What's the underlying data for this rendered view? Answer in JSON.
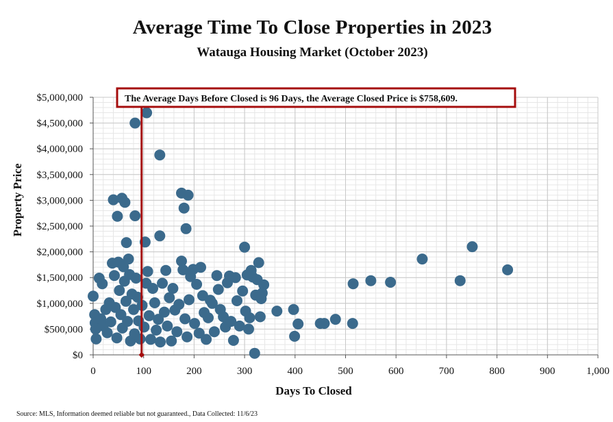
{
  "chart_data": {
    "type": "scatter",
    "title": "Average Time To Close Properties in 2023",
    "subtitle": "Watauga Housing Market (October 2023)",
    "xlabel": "Days To Closed",
    "ylabel": "Property Price",
    "xlim": [
      0,
      1000
    ],
    "ylim": [
      0,
      5000000
    ],
    "xticks": [
      "0",
      "100",
      "200",
      "300",
      "400",
      "500",
      "600",
      "700",
      "800",
      "900",
      "1,000"
    ],
    "yticks": [
      "$0",
      "$500,000",
      "$1,000,000",
      "$1,500,000",
      "$2,000,000",
      "$2,500,000",
      "$3,000,000",
      "$3,500,000",
      "$4,000,000",
      "$4,500,000",
      "$5,000,000"
    ],
    "grid": true,
    "reference_line": {
      "x": 96,
      "color": "#a50d0d"
    },
    "annotation": "The Average Days Before Closed is 96 Days, the Average Closed Price is $758,609.",
    "marker_color": "#3b6a8c",
    "points": [
      [
        83,
        4500000
      ],
      [
        106,
        4700000
      ],
      [
        132,
        3880000
      ],
      [
        175,
        3140000
      ],
      [
        188,
        3100000
      ],
      [
        180,
        2850000
      ],
      [
        184,
        2450000
      ],
      [
        132,
        2310000
      ],
      [
        40,
        3010000
      ],
      [
        57,
        3040000
      ],
      [
        63,
        2960000
      ],
      [
        48,
        2690000
      ],
      [
        83,
        2700000
      ],
      [
        66,
        2180000
      ],
      [
        103,
        2190000
      ],
      [
        0,
        1140000
      ],
      [
        3,
        780000
      ],
      [
        4,
        620000
      ],
      [
        5,
        500000
      ],
      [
        6,
        310000
      ],
      [
        12,
        1490000
      ],
      [
        18,
        1380000
      ],
      [
        15,
        700000
      ],
      [
        20,
        560000
      ],
      [
        25,
        880000
      ],
      [
        28,
        430000
      ],
      [
        32,
        1010000
      ],
      [
        35,
        640000
      ],
      [
        38,
        1780000
      ],
      [
        42,
        1540000
      ],
      [
        44,
        920000
      ],
      [
        47,
        330000
      ],
      [
        50,
        1800000
      ],
      [
        52,
        1250000
      ],
      [
        55,
        780000
      ],
      [
        58,
        520000
      ],
      [
        60,
        1710000
      ],
      [
        62,
        1430000
      ],
      [
        65,
        1040000
      ],
      [
        68,
        650000
      ],
      [
        70,
        1860000
      ],
      [
        72,
        1560000
      ],
      [
        74,
        270000
      ],
      [
        77,
        1180000
      ],
      [
        80,
        880000
      ],
      [
        82,
        410000
      ],
      [
        85,
        1490000
      ],
      [
        88,
        1120000
      ],
      [
        90,
        660000
      ],
      [
        93,
        310000
      ],
      [
        97,
        960000
      ],
      [
        101,
        540000
      ],
      [
        105,
        1390000
      ],
      [
        108,
        1620000
      ],
      [
        111,
        760000
      ],
      [
        114,
        300000
      ],
      [
        118,
        1290000
      ],
      [
        122,
        1010000
      ],
      [
        125,
        480000
      ],
      [
        129,
        690000
      ],
      [
        133,
        250000
      ],
      [
        137,
        1390000
      ],
      [
        141,
        830000
      ],
      [
        144,
        1640000
      ],
      [
        147,
        560000
      ],
      [
        151,
        1110000
      ],
      [
        155,
        270000
      ],
      [
        158,
        1290000
      ],
      [
        162,
        870000
      ],
      [
        166,
        450000
      ],
      [
        170,
        980000
      ],
      [
        175,
        1820000
      ],
      [
        178,
        1650000
      ],
      [
        182,
        700000
      ],
      [
        186,
        350000
      ],
      [
        190,
        1070000
      ],
      [
        193,
        1520000
      ],
      [
        198,
        1660000
      ],
      [
        201,
        610000
      ],
      [
        205,
        1370000
      ],
      [
        210,
        420000
      ],
      [
        213,
        1700000
      ],
      [
        217,
        1150000
      ],
      [
        220,
        820000
      ],
      [
        224,
        300000
      ],
      [
        228,
        720000
      ],
      [
        232,
        1060000
      ],
      [
        236,
        1000000
      ],
      [
        240,
        450000
      ],
      [
        245,
        1540000
      ],
      [
        248,
        1270000
      ],
      [
        252,
        880000
      ],
      [
        258,
        740000
      ],
      [
        262,
        540000
      ],
      [
        266,
        1400000
      ],
      [
        270,
        1530000
      ],
      [
        273,
        650000
      ],
      [
        278,
        280000
      ],
      [
        282,
        1500000
      ],
      [
        285,
        1050000
      ],
      [
        290,
        560000
      ],
      [
        296,
        1240000
      ],
      [
        300,
        2090000
      ],
      [
        302,
        850000
      ],
      [
        305,
        1550000
      ],
      [
        308,
        500000
      ],
      [
        310,
        720000
      ],
      [
        313,
        1640000
      ],
      [
        316,
        1510000
      ],
      [
        320,
        30000
      ],
      [
        322,
        1160000
      ],
      [
        325,
        1460000
      ],
      [
        328,
        1790000
      ],
      [
        331,
        740000
      ],
      [
        333,
        1090000
      ],
      [
        335,
        1200000
      ],
      [
        338,
        1360000
      ],
      [
        364,
        850000
      ],
      [
        397,
        880000
      ],
      [
        399,
        360000
      ],
      [
        406,
        600000
      ],
      [
        450,
        610000
      ],
      [
        458,
        610000
      ],
      [
        480,
        690000
      ],
      [
        514,
        610000
      ],
      [
        515,
        1380000
      ],
      [
        550,
        1440000
      ],
      [
        589,
        1410000
      ],
      [
        652,
        1860000
      ],
      [
        727,
        1440000
      ],
      [
        751,
        2100000
      ],
      [
        821,
        1650000
      ]
    ]
  },
  "footer": {
    "source": "Source: MLS, Information deemed reliable but not guaranteed., Data Collected: 11/6/23"
  }
}
